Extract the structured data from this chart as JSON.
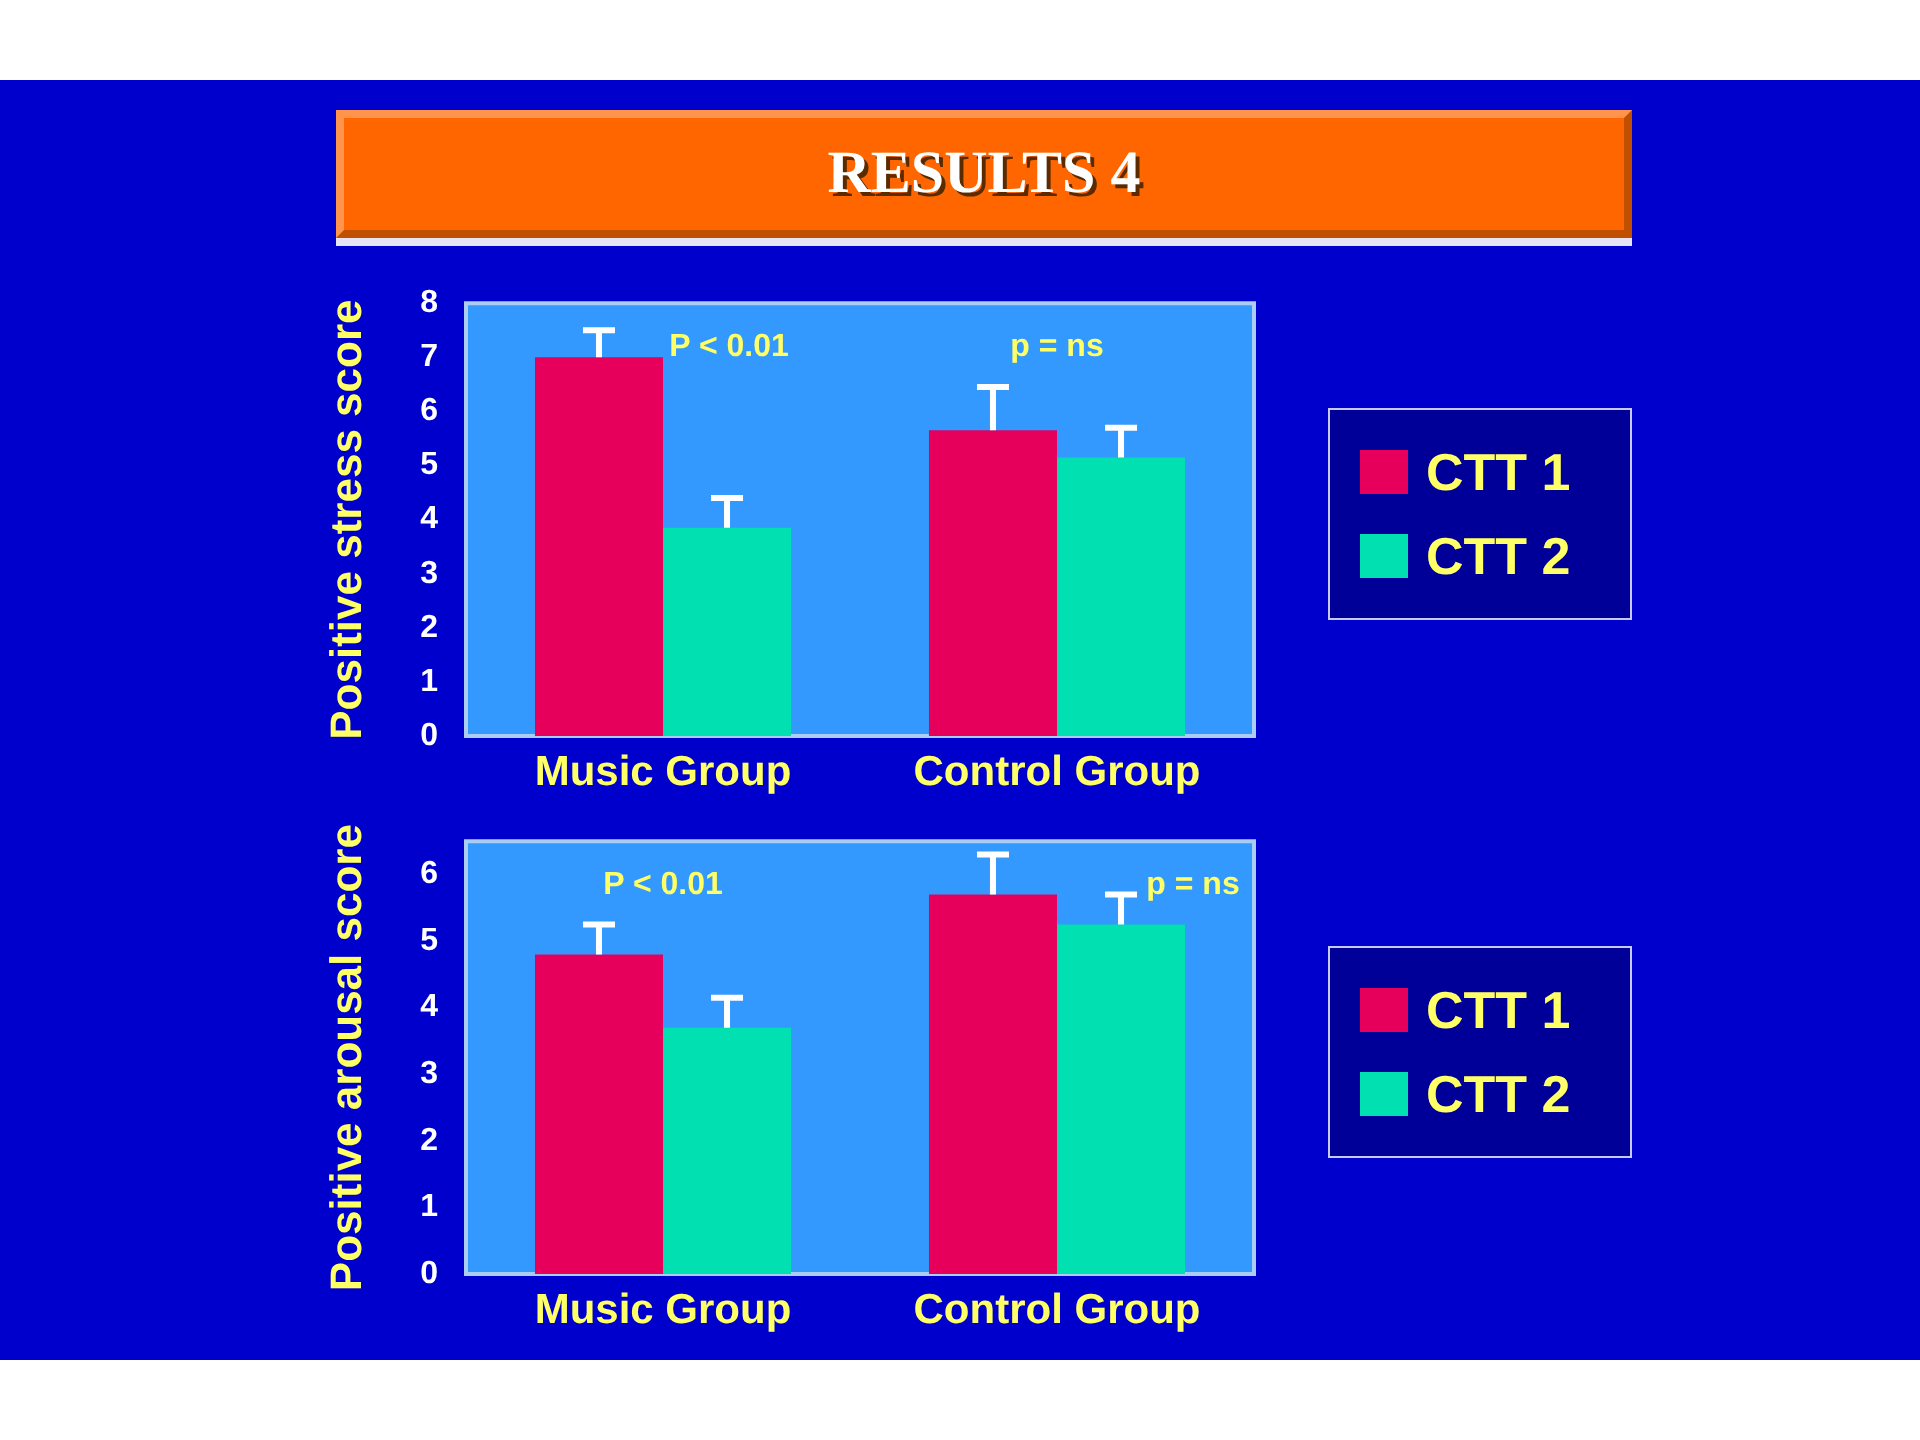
{
  "chart_data": [
    {
      "type": "bar",
      "title": "RESULTS 4",
      "ylabel": "Positive stress score",
      "categories": [
        "Music Group",
        "Control Group"
      ],
      "series": [
        {
          "name": "CTT 1",
          "color": "#e6005c",
          "values": [
            7.0,
            5.65
          ],
          "errors": [
            [
              7.0,
              7.5
            ],
            [
              5.65,
              6.45
            ]
          ]
        },
        {
          "name": "CTT 2",
          "color": "#00e0b0",
          "values": [
            3.85,
            5.15
          ],
          "errors": [
            [
              3.85,
              4.4
            ],
            [
              5.15,
              5.7
            ]
          ]
        }
      ],
      "ylim": [
        0,
        8
      ],
      "yticks": [
        0,
        1,
        2,
        3,
        4,
        5,
        6,
        7,
        8
      ],
      "grid": false,
      "legend": "right",
      "annotations": [
        "P < 0.01",
        "p = ns"
      ]
    },
    {
      "type": "bar",
      "ylabel": "Positive arousal score",
      "categories": [
        "Music Group",
        "Control Group"
      ],
      "series": [
        {
          "name": "CTT 1",
          "color": "#e6005c",
          "values": [
            4.8,
            5.7
          ],
          "errors": [
            [
              4.8,
              5.25
            ],
            [
              5.7,
              6.3
            ]
          ]
        },
        {
          "name": "CTT 2",
          "color": "#00e0b0",
          "values": [
            3.7,
            5.25
          ],
          "errors": [
            [
              3.7,
              4.15
            ],
            [
              5.25,
              5.7
            ]
          ]
        }
      ],
      "ylim": [
        0,
        6.5
      ],
      "yticks": [
        0,
        1,
        2,
        3,
        4,
        5,
        6
      ],
      "grid": false,
      "legend": "right",
      "annotations": [
        "P < 0.01",
        "p = ns"
      ]
    }
  ]
}
